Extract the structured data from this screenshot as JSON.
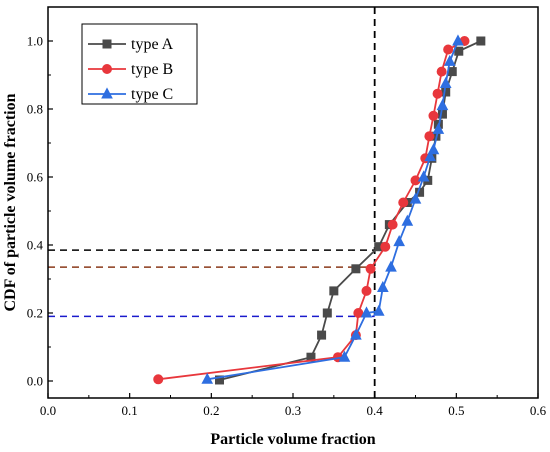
{
  "chart_data": {
    "type": "line",
    "xlabel": "Particle volume fraction",
    "ylabel": "CDF of particle volume fraction",
    "xlim": [
      0.0,
      0.6
    ],
    "ylim": [
      -0.05,
      1.1
    ],
    "xticks": [
      0.0,
      0.1,
      0.2,
      0.3,
      0.4,
      0.5,
      0.6
    ],
    "xtick_labels": [
      "0.0",
      "0.1",
      "0.2",
      "0.3",
      "0.4",
      "0.5",
      "0.6"
    ],
    "yticks": [
      0.0,
      0.2,
      0.4,
      0.6,
      0.8,
      1.0
    ],
    "ytick_labels": [
      "0.0",
      "0.2",
      "0.4",
      "0.6",
      "0.8",
      "1.0"
    ],
    "legend_position": "top-left",
    "series": [
      {
        "name": "type A",
        "color": "#4a4a4a",
        "marker": "square",
        "x": [
          0.21,
          0.322,
          0.335,
          0.342,
          0.35,
          0.377,
          0.405,
          0.418,
          0.44,
          0.455,
          0.465,
          0.47,
          0.475,
          0.478,
          0.483,
          0.487,
          0.495,
          0.503,
          0.53
        ],
        "y": [
          0.003,
          0.07,
          0.135,
          0.2,
          0.265,
          0.33,
          0.395,
          0.46,
          0.525,
          0.555,
          0.59,
          0.655,
          0.72,
          0.755,
          0.785,
          0.85,
          0.91,
          0.97,
          1.0
        ]
      },
      {
        "name": "type B",
        "color": "#e8373c",
        "marker": "circle",
        "x": [
          0.135,
          0.355,
          0.377,
          0.38,
          0.39,
          0.395,
          0.413,
          0.422,
          0.435,
          0.45,
          0.462,
          0.467,
          0.472,
          0.477,
          0.482,
          0.49,
          0.51
        ],
        "y": [
          0.005,
          0.07,
          0.135,
          0.2,
          0.265,
          0.33,
          0.395,
          0.46,
          0.525,
          0.59,
          0.655,
          0.72,
          0.78,
          0.845,
          0.91,
          0.975,
          1.0
        ]
      },
      {
        "name": "type C",
        "color": "#2e6ee0",
        "marker": "triangle",
        "x": [
          0.195,
          0.363,
          0.377,
          0.39,
          0.405,
          0.41,
          0.42,
          0.43,
          0.44,
          0.45,
          0.46,
          0.468,
          0.472,
          0.478,
          0.483,
          0.487,
          0.492,
          0.502
        ],
        "y": [
          0.005,
          0.07,
          0.135,
          0.2,
          0.205,
          0.275,
          0.335,
          0.41,
          0.47,
          0.535,
          0.6,
          0.66,
          0.68,
          0.74,
          0.81,
          0.875,
          0.94,
          1.0
        ]
      }
    ],
    "reference_lines": [
      {
        "orientation": "vertical",
        "x": 0.4,
        "color": "#000000"
      },
      {
        "orientation": "horizontal",
        "y": 0.385,
        "x_end": 0.4,
        "color": "#000000"
      },
      {
        "orientation": "horizontal",
        "y": 0.335,
        "x_end": 0.4,
        "color": "#8b3a1a"
      },
      {
        "orientation": "horizontal",
        "y": 0.19,
        "x_end": 0.4,
        "color": "#1a1acc"
      }
    ]
  }
}
